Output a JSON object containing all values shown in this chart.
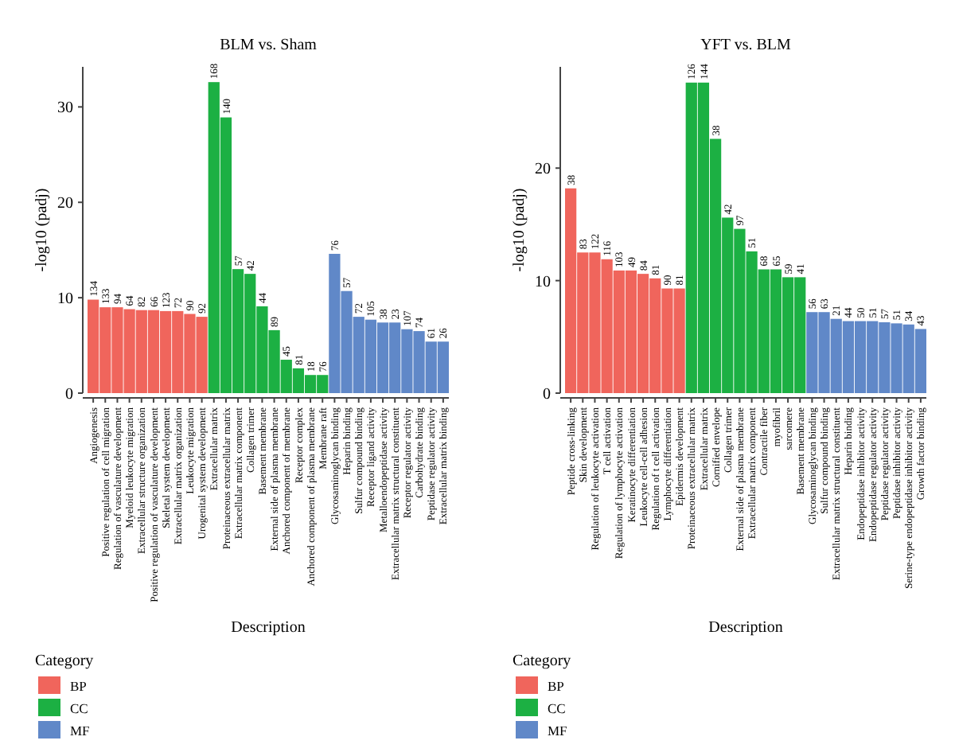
{
  "chart_data": [
    {
      "type": "bar",
      "title": "BLM vs. Sham",
      "xlabel": "Description",
      "ylabel": "-log10 (padj)",
      "legend_title": "Category",
      "legend": "bottom",
      "ylim": [
        0,
        34.2
      ],
      "yticks": [
        0,
        10,
        20,
        30
      ],
      "categories": [
        "Angiogenesis",
        "Positive regulation of cell migration",
        "Regulation of vasculature development",
        "Myeloid leukocyte migration",
        "Extracellular structure organization",
        "Positive regulation of vasculature development",
        "Skeletal system development",
        "Extracellular matrix organization",
        "Leukocyte migration",
        "Urogenital system development",
        "Extracellular matrix",
        "Proteinaceous extracellular matrix",
        "Extracellular matrix component",
        "Collagen trimer",
        "Basement membrane",
        "External side of plasma membrane",
        "Anchored component of membrane",
        "Receptor complex",
        "Anchored component of plasma membrane",
        "Membrane raft",
        "Glycosaminoglycan binding",
        "Heparin binding",
        "Sulfur compound binding",
        "Receptor ligand activity",
        "Metalloendopeptidase activity",
        "Extracellular matrix structural constituent",
        "Receptor regulator activity",
        "Carbohydrate binding",
        "Peptidase regulator activity",
        "Extracellular matrix binding"
      ],
      "series": [
        {
          "name": "BP",
          "color": "#f0655c",
          "values": [
            9.8,
            9.0,
            9.0,
            8.8,
            8.7,
            8.7,
            8.6,
            8.6,
            8.3,
            8.0,
            null,
            null,
            null,
            null,
            null,
            null,
            null,
            null,
            null,
            null,
            null,
            null,
            null,
            null,
            null,
            null,
            null,
            null,
            null,
            null
          ]
        },
        {
          "name": "CC",
          "color": "#1cb043",
          "values": [
            null,
            null,
            null,
            null,
            null,
            null,
            null,
            null,
            null,
            null,
            32.6,
            28.9,
            13.0,
            12.5,
            9.1,
            6.6,
            3.5,
            2.6,
            1.9,
            1.9,
            null,
            null,
            null,
            null,
            null,
            null,
            null,
            null,
            null,
            null
          ]
        },
        {
          "name": "MF",
          "color": "#6088c8",
          "values": [
            null,
            null,
            null,
            null,
            null,
            null,
            null,
            null,
            null,
            null,
            null,
            null,
            null,
            null,
            null,
            null,
            null,
            null,
            null,
            null,
            14.6,
            10.7,
            8.0,
            7.7,
            7.4,
            7.4,
            6.7,
            6.5,
            5.4,
            5.4
          ]
        }
      ],
      "annotations": [
        {
          "text": "134",
          "x": "Angiogenesis",
          "y": 9.8
        },
        {
          "text": "133",
          "x": "Positive regulation of cell migration",
          "y": 9.0
        },
        {
          "text": "94",
          "x": "Regulation of vasculature development",
          "y": 9.0
        },
        {
          "text": "64",
          "x": "Myeloid leukocyte migration",
          "y": 8.8
        },
        {
          "text": "82",
          "x": "Extracellular structure organization",
          "y": 8.7
        },
        {
          "text": "66",
          "x": "Positive regulation of vasculature development",
          "y": 8.7
        },
        {
          "text": "123",
          "x": "Skeletal system development",
          "y": 8.6
        },
        {
          "text": "72",
          "x": "Extracellular matrix organization",
          "y": 8.6
        },
        {
          "text": "90",
          "x": "Leukocyte migration",
          "y": 8.3
        },
        {
          "text": "92",
          "x": "Urogenital system development",
          "y": 8.0
        },
        {
          "text": "168",
          "x": "Extracellular matrix",
          "y": 32.6
        },
        {
          "text": "140",
          "x": "Proteinaceous extracellular matrix",
          "y": 28.9
        },
        {
          "text": "57",
          "x": "Extracellular matrix component",
          "y": 13.0
        },
        {
          "text": "42",
          "x": "Collagen trimer",
          "y": 12.5
        },
        {
          "text": "44",
          "x": "Basement membrane",
          "y": 9.1
        },
        {
          "text": "89",
          "x": "External side of plasma membrane",
          "y": 6.6
        },
        {
          "text": "45",
          "x": "Anchored component of membrane",
          "y": 3.5
        },
        {
          "text": "81",
          "x": "Receptor complex",
          "y": 2.6
        },
        {
          "text": "18",
          "x": "Anchored component of plasma membrane",
          "y": 1.9
        },
        {
          "text": "76",
          "x": "Membrane raft",
          "y": 1.9
        },
        {
          "text": "76",
          "x": "Glycosaminoglycan binding",
          "y": 14.6
        },
        {
          "text": "57",
          "x": "Heparin binding",
          "y": 10.7
        },
        {
          "text": "72",
          "x": "Sulfur compound binding",
          "y": 8.0
        },
        {
          "text": "105",
          "x": "Receptor ligand activity",
          "y": 7.7
        },
        {
          "text": "38",
          "x": "Metalloendopeptidase activity",
          "y": 7.4
        },
        {
          "text": "23",
          "x": "Extracellular matrix structural constituent",
          "y": 7.4
        },
        {
          "text": "107",
          "x": "Receptor regulator activity",
          "y": 6.7
        },
        {
          "text": "74",
          "x": "Carbohydrate binding",
          "y": 6.5
        },
        {
          "text": "61",
          "x": "Peptidase regulator activity",
          "y": 5.4
        },
        {
          "text": "26",
          "x": "Extracellular matrix binding",
          "y": 5.4
        }
      ]
    },
    {
      "type": "bar",
      "title": "YFT vs. BLM",
      "xlabel": "Description",
      "ylabel": "-log10 (padj)",
      "legend_title": "Category",
      "legend": "bottom",
      "ylim": [
        0,
        29
      ],
      "yticks": [
        0,
        10,
        20
      ],
      "categories": [
        "Peptide cross-linking",
        "Skin development",
        "Regulation of leukocyte activation",
        "T cell activation",
        "Regulation of lymphocyte activation",
        "Keratinocyte differentiation",
        "Leukocyte cell-cell adhesion",
        "Regulation of t cell activation",
        "Lymphocyte differentiation",
        "Epidermis development",
        "Proteinaceous extracellular matrix",
        "Extracellular matrix",
        "Cornified envelope",
        "Collagen trimer",
        "External side of plasma membrane",
        "Extracellular matrix component",
        "Contractile fiber",
        "myofibril",
        "sarcomere",
        "Basement membrane",
        "Glycosaminoglycan binding",
        "Sulfur compound binding",
        "Extracellular matrix structural constituent",
        "Heparin binding",
        "Endopeptidase inhibitor activity",
        "Endopeptidase regulator activity",
        "Peptidase regulator activity",
        "Peptidase inhibitor activity",
        "Serine-type endopeptidase inhibitor activity",
        "Growth factor binding"
      ],
      "series": [
        {
          "name": "BP",
          "color": "#f0655c",
          "values": [
            18.2,
            12.5,
            12.5,
            11.9,
            10.9,
            10.9,
            10.6,
            10.2,
            9.3,
            9.3,
            null,
            null,
            null,
            null,
            null,
            null,
            null,
            null,
            null,
            null,
            null,
            null,
            null,
            null,
            null,
            null,
            null,
            null,
            null,
            null
          ]
        },
        {
          "name": "CC",
          "color": "#1cb043",
          "values": [
            null,
            null,
            null,
            null,
            null,
            null,
            null,
            null,
            null,
            null,
            27.6,
            27.6,
            22.6,
            15.6,
            14.6,
            12.6,
            11.0,
            11.0,
            10.3,
            10.3,
            null,
            null,
            null,
            null,
            null,
            null,
            null,
            null,
            null,
            null
          ]
        },
        {
          "name": "MF",
          "color": "#6088c8",
          "values": [
            null,
            null,
            null,
            null,
            null,
            null,
            null,
            null,
            null,
            null,
            null,
            null,
            null,
            null,
            null,
            null,
            null,
            null,
            null,
            null,
            7.2,
            7.2,
            6.6,
            6.4,
            6.4,
            6.4,
            6.3,
            6.2,
            6.1,
            5.7
          ]
        }
      ],
      "annotations": [
        {
          "text": "38",
          "x": "Peptide cross-linking",
          "y": 18.2
        },
        {
          "text": "83",
          "x": "Skin development",
          "y": 12.5
        },
        {
          "text": "122",
          "x": "Regulation of leukocyte activation",
          "y": 12.5
        },
        {
          "text": "116",
          "x": "T cell activation",
          "y": 11.9
        },
        {
          "text": "103",
          "x": "Regulation of lymphocyte activation",
          "y": 10.9
        },
        {
          "text": "49",
          "x": "Keratinocyte differentiation",
          "y": 10.9
        },
        {
          "text": "84",
          "x": "Leukocyte cell-cell adhesion",
          "y": 10.6
        },
        {
          "text": "81",
          "x": "Regulation of t cell activation",
          "y": 10.2
        },
        {
          "text": "90",
          "x": "Lymphocyte differentiation",
          "y": 9.3
        },
        {
          "text": "81",
          "x": "Epidermis development",
          "y": 9.3
        },
        {
          "text": "126",
          "x": "Proteinaceous extracellular matrix",
          "y": 27.6
        },
        {
          "text": "144",
          "x": "Extracellular matrix",
          "y": 27.6
        },
        {
          "text": "38",
          "x": "Cornified envelope",
          "y": 22.6
        },
        {
          "text": "42",
          "x": "Collagen trimer",
          "y": 15.6
        },
        {
          "text": "97",
          "x": "External side of plasma membrane",
          "y": 14.6
        },
        {
          "text": "51",
          "x": "Extracellular matrix component",
          "y": 12.6
        },
        {
          "text": "68",
          "x": "Contractile fiber",
          "y": 11.0
        },
        {
          "text": "65",
          "x": "myofibril",
          "y": 11.0
        },
        {
          "text": "59",
          "x": "sarcomere",
          "y": 10.3
        },
        {
          "text": "41",
          "x": "Basement membrane",
          "y": 10.3
        },
        {
          "text": "56",
          "x": "Glycosaminoglycan binding",
          "y": 7.2
        },
        {
          "text": "63",
          "x": "Sulfur compound binding",
          "y": 7.2
        },
        {
          "text": "21",
          "x": "Extracellular matrix structural constituent",
          "y": 6.6
        },
        {
          "text": "44",
          "x": "Heparin binding",
          "y": 6.4
        },
        {
          "text": "50",
          "x": "Endopeptidase inhibitor activity",
          "y": 6.4
        },
        {
          "text": "51",
          "x": "Endopeptidase regulator activity",
          "y": 6.4
        },
        {
          "text": "57",
          "x": "Peptidase regulator activity",
          "y": 6.3
        },
        {
          "text": "51",
          "x": "Peptidase inhibitor activity",
          "y": 6.2
        },
        {
          "text": "34",
          "x": "Serine-type endopeptidase inhibitor activity",
          "y": 6.1
        },
        {
          "text": "43",
          "x": "Growth factor binding",
          "y": 5.7
        }
      ]
    }
  ]
}
